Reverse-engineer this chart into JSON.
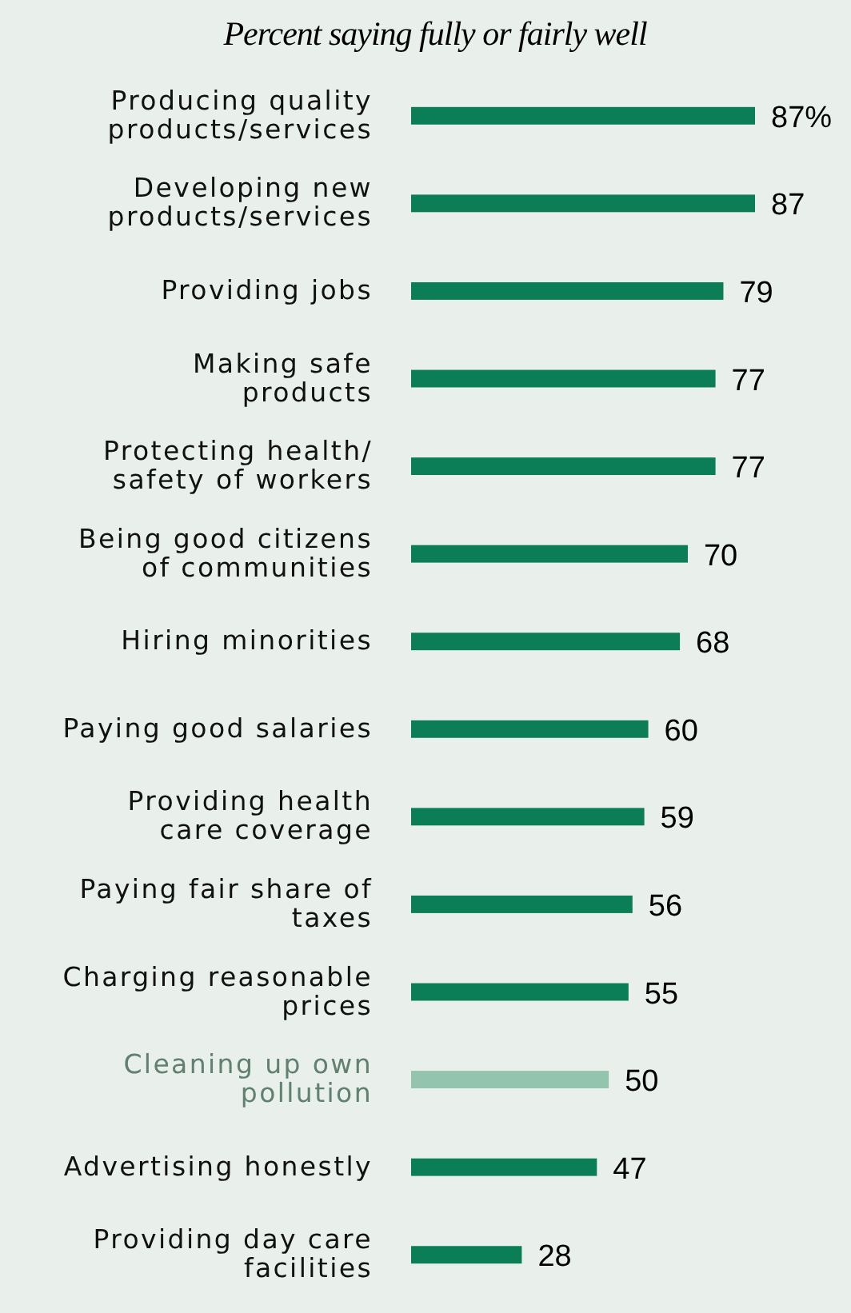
{
  "chart_data": {
    "type": "bar",
    "orientation": "horizontal",
    "title": "Percent saying fully or fairly well",
    "categories": [
      "Producing quality products/services",
      "Developing new products/services",
      "Providing jobs",
      "Making safe products",
      "Protecting health/ safety of workers",
      "Being good citizens of communities",
      "Hiring minorities",
      "Paying good salaries",
      "Providing health care coverage",
      "Paying fair share of taxes",
      "Charging reasonable prices",
      "Cleaning up own pollution",
      "Advertising honestly",
      "Providing day care facilities"
    ],
    "values": [
      87,
      87,
      79,
      77,
      77,
      70,
      68,
      60,
      59,
      56,
      55,
      50,
      47,
      28
    ],
    "value_labels": [
      "87%",
      "87",
      "79",
      "77",
      "77",
      "70",
      "68",
      "60",
      "59",
      "56",
      "55",
      "50",
      "47",
      "28"
    ],
    "colors": [
      "#0b7d57",
      "#0b7d57",
      "#0b7d57",
      "#0b7d57",
      "#0b7d57",
      "#0b7d57",
      "#0b7d57",
      "#0b7d57",
      "#0b7d57",
      "#0b7d57",
      "#0b7d57",
      "#93c4ad",
      "#0b7d57",
      "#0b7d57"
    ]
  }
}
